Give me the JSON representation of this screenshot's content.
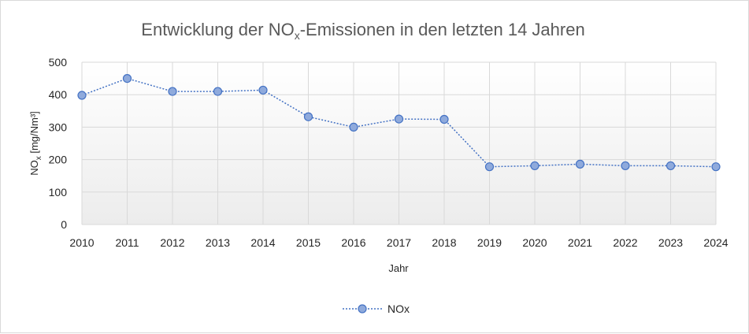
{
  "chart_data": {
    "type": "line",
    "title": {
      "main": "Entwicklung der NO",
      "sub": "x",
      "rest": "-Emissionen in den letzten 14 Jahren"
    },
    "xlabel": "Jahr",
    "ylabel": {
      "main": "NO",
      "sub": "x",
      "rest": " [mg/Nm³]"
    },
    "ylim": [
      0,
      500
    ],
    "yticks": [
      0,
      100,
      200,
      300,
      400,
      500
    ],
    "x": [
      "2010",
      "2011",
      "2012",
      "2013",
      "2014",
      "2015",
      "2016",
      "2017",
      "2018",
      "2019",
      "2020",
      "2021",
      "2022",
      "2023",
      "2024"
    ],
    "series": [
      {
        "name": "NOx",
        "values": [
          398,
          450,
          410,
          410,
          414,
          332,
          300,
          325,
          324,
          178,
          181,
          186,
          181,
          181,
          178
        ],
        "color": "#4472c4",
        "marker_fill": "#8faadc"
      }
    ],
    "grid": true,
    "legend_position": "bottom"
  }
}
